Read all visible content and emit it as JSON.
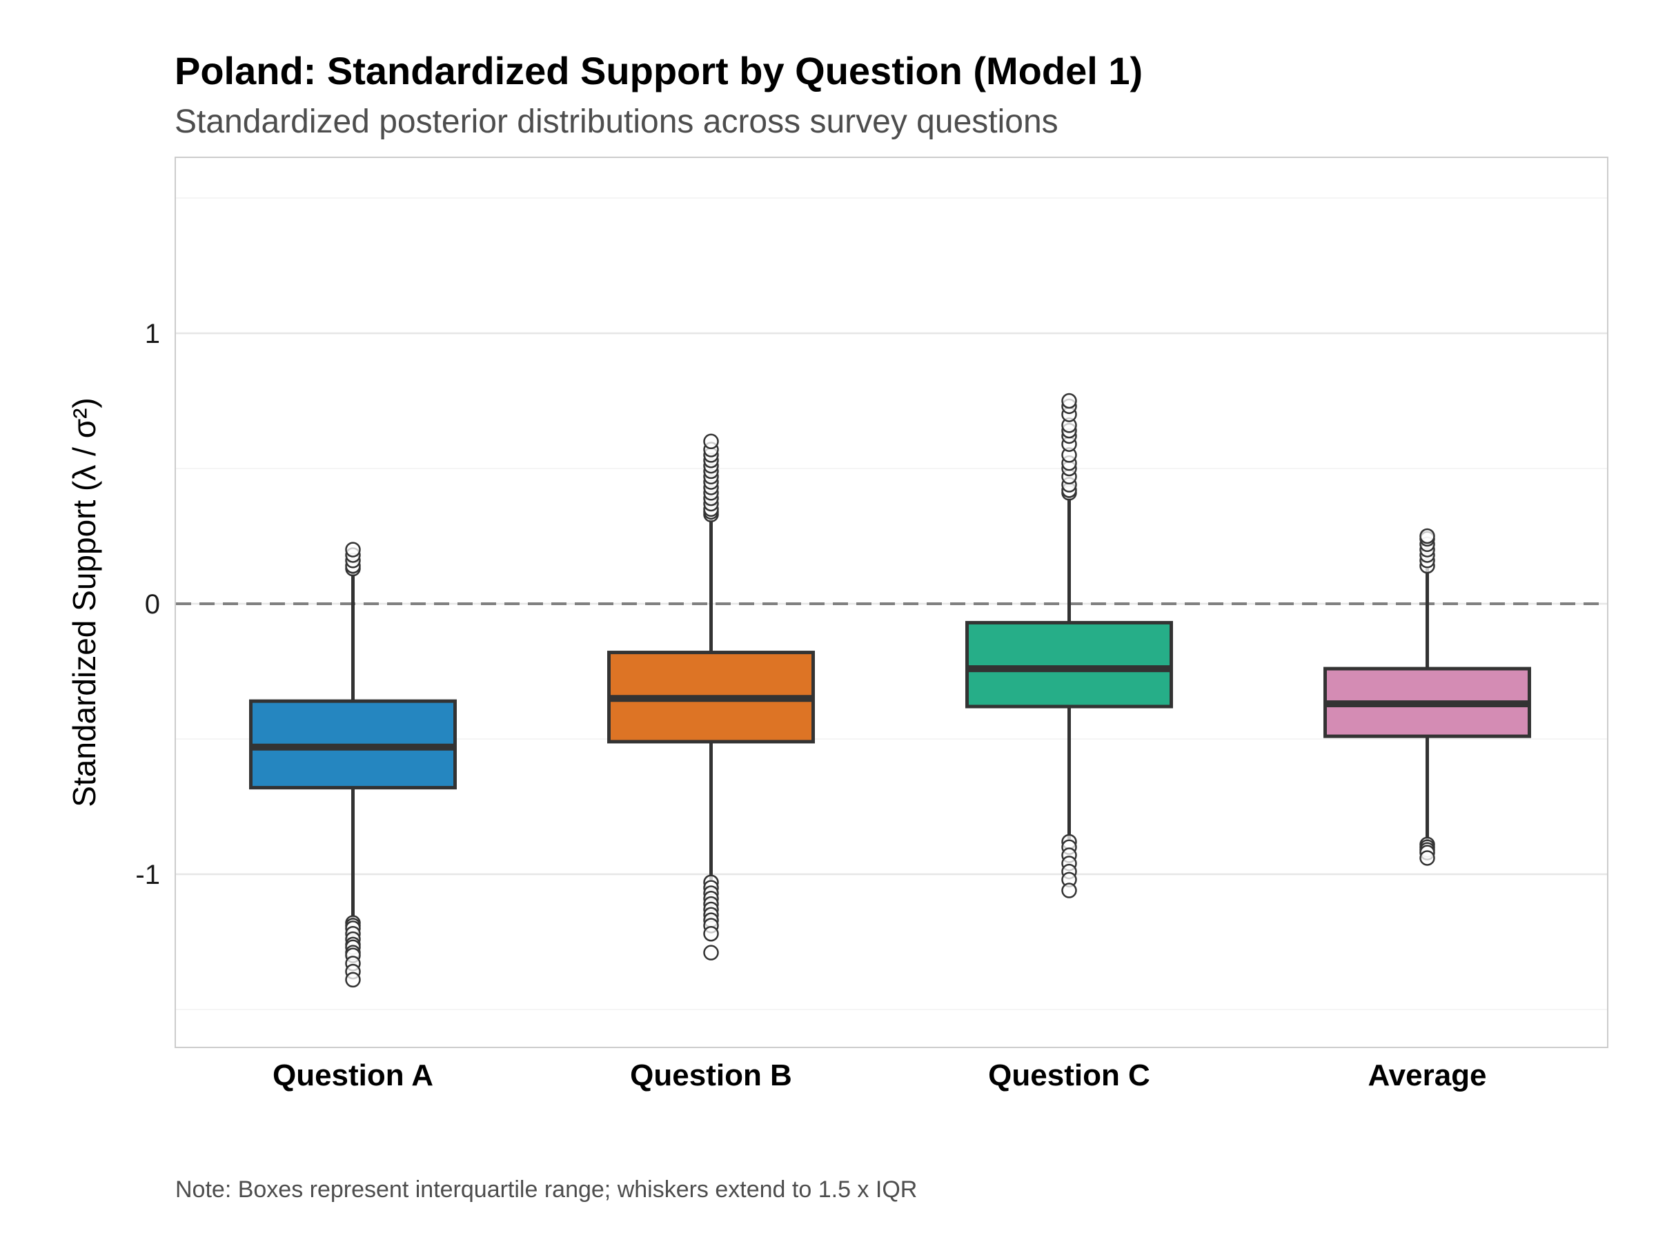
{
  "chart_data": {
    "type": "box",
    "title": "Poland: Standardized Support by Question (Model 1)",
    "subtitle": "Standardized posterior distributions across survey questions",
    "ylabel": "Standardized Support (λ / σ²)",
    "note": "Note: Boxes represent interquartile range; whiskers extend to 1.5 x IQR",
    "ylim": [
      -1.65,
      1.65
    ],
    "yticks": [
      -1,
      0,
      1
    ],
    "ytick_labels": [
      "-1",
      "0",
      "1"
    ],
    "reference_line": 0,
    "grid": true,
    "categories": [
      "Question A",
      "Question B",
      "Question C",
      "Average"
    ],
    "boxes": [
      {
        "name": "Question A",
        "color": "#2586c0",
        "whisker_low": -1.17,
        "q1": -0.68,
        "median": -0.53,
        "q3": -0.36,
        "whisker_high": 0.12,
        "outliers": [
          0.13,
          0.14,
          0.16,
          0.18,
          0.2,
          -1.18,
          -1.19,
          -1.2,
          -1.22,
          -1.24,
          -1.26,
          -1.27,
          -1.29,
          -1.3,
          -1.33,
          -1.36,
          -1.39
        ]
      },
      {
        "name": "Question B",
        "color": "#dd7425",
        "whisker_low": -1.02,
        "q1": -0.51,
        "median": -0.35,
        "q3": -0.18,
        "whisker_high": 0.32,
        "outliers": [
          0.33,
          0.34,
          0.35,
          0.37,
          0.39,
          0.41,
          0.43,
          0.45,
          0.47,
          0.49,
          0.51,
          0.53,
          0.55,
          0.57,
          0.6,
          -1.03,
          -1.05,
          -1.07,
          -1.09,
          -1.11,
          -1.13,
          -1.15,
          -1.17,
          -1.19,
          -1.22,
          -1.29
        ]
      },
      {
        "name": "Question C",
        "color": "#26ae88",
        "whisker_low": -0.87,
        "q1": -0.38,
        "median": -0.24,
        "q3": -0.07,
        "whisker_high": 0.4,
        "outliers": [
          0.41,
          0.42,
          0.44,
          0.47,
          0.5,
          0.52,
          0.55,
          0.59,
          0.62,
          0.64,
          0.66,
          0.7,
          0.73,
          0.75,
          -0.88,
          -0.9,
          -0.93,
          -0.96,
          -0.99,
          -1.02,
          -1.06
        ]
      },
      {
        "name": "Average",
        "color": "#d48cb4",
        "whisker_low": -0.88,
        "q1": -0.49,
        "median": -0.37,
        "q3": -0.24,
        "whisker_high": 0.13,
        "outliers": [
          0.14,
          0.16,
          0.18,
          0.2,
          0.22,
          0.24,
          0.25,
          -0.89,
          -0.9,
          -0.91,
          -0.92,
          -0.94
        ]
      }
    ]
  }
}
